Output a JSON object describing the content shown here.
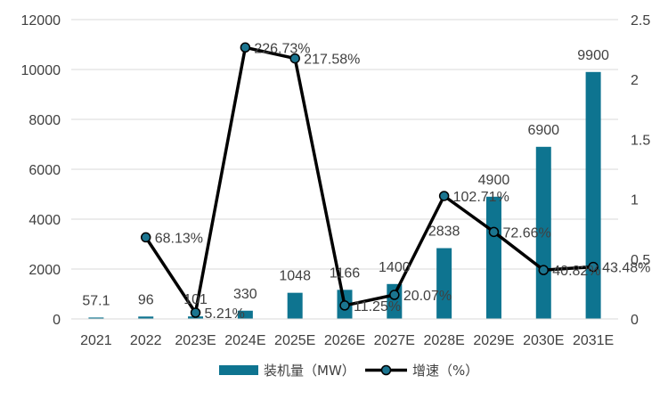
{
  "chart_data": {
    "type": "bar+line",
    "categories": [
      "2021",
      "2022",
      "2023E",
      "2024E",
      "2025E",
      "2026E",
      "2027E",
      "2028E",
      "2029E",
      "2030E",
      "2031E"
    ],
    "series": [
      {
        "name": "装机量（MW）",
        "type": "bar",
        "axis": "left",
        "color": "#0e7490",
        "values": [
          57.1,
          96,
          101,
          330,
          1048,
          1166,
          1400,
          2838,
          4900,
          6900,
          9900
        ],
        "labels": [
          "57.1",
          "96",
          "101",
          "330",
          "1048",
          "1166",
          "1400",
          "2838",
          "4900",
          "6900",
          "9900"
        ]
      },
      {
        "name": "增速（%）",
        "type": "line",
        "axis": "right",
        "color": "#000000",
        "marker_color": "#1b7590",
        "values": [
          null,
          0.6813,
          0.0521,
          2.2673,
          2.1758,
          0.1125,
          0.2007,
          1.0271,
          0.7266,
          0.4082,
          0.4348
        ],
        "labels": [
          null,
          "68.13%",
          "5.21%",
          "226.73%",
          "217.58%",
          "11.25%",
          "20.07%",
          "102.71%",
          "72.66%",
          "40.82%",
          "43.48%"
        ]
      }
    ],
    "y_left": {
      "min": 0,
      "max": 12000,
      "ticks": [
        "0",
        "2000",
        "4000",
        "6000",
        "8000",
        "10000",
        "12000"
      ]
    },
    "y_right": {
      "min": 0,
      "max": 2.5,
      "ticks": [
        "0",
        "0.5",
        "1",
        "1.5",
        "2",
        "2.5"
      ]
    },
    "grid": true,
    "legend_position": "bottom"
  }
}
